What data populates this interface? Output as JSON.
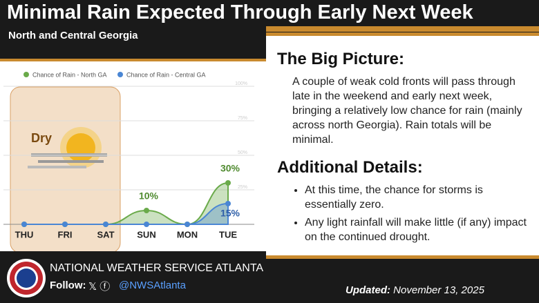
{
  "header": {
    "title": "Minimal Rain Expected Through Early Next Week",
    "subtitle": "North and Central Georgia"
  },
  "chart_data": {
    "type": "area",
    "annotation": "Dry",
    "categories": [
      "THU",
      "FRI",
      "SAT",
      "SUN",
      "MON",
      "TUE"
    ],
    "series": [
      {
        "name": "Chance of Rain - North GA",
        "color": "#6aaa4a",
        "values": [
          0,
          0,
          0,
          10,
          0,
          30
        ],
        "value_labels": [
          null,
          null,
          null,
          "10%",
          null,
          "30%"
        ]
      },
      {
        "name": "Chance of Rain - Central GA",
        "color": "#4a86d4",
        "values": [
          0,
          0,
          0,
          0,
          0,
          15
        ],
        "value_labels": [
          null,
          null,
          null,
          null,
          null,
          "15%"
        ]
      }
    ],
    "ylim": [
      0,
      100
    ],
    "yticks": [
      {
        "value": 25,
        "label": "25%"
      },
      {
        "value": 50,
        "label": "50%"
      },
      {
        "value": 75,
        "label": "75%"
      },
      {
        "value": 100,
        "label": "100%"
      }
    ],
    "grid": true
  },
  "big_picture": {
    "heading": "The Big Picture:",
    "text": "A couple of weak cold fronts will pass through late in the weekend and early next week, bringing a relatively low chance for rain (mainly across north Georgia). Rain totals will be minimal."
  },
  "additional_details": {
    "heading": "Additional Details:",
    "bullets": [
      "At this time, the chance for storms is essentially zero.",
      "Any light rainfall will make little (if any) impact on the continued drought."
    ]
  },
  "footer": {
    "org": "NATIONAL WEATHER SERVICE ATLANTA",
    "follow": "Follow:",
    "handle": "@NWSAtlanta",
    "updated_label": "Updated:",
    "updated_date": "November 13, 2025"
  }
}
